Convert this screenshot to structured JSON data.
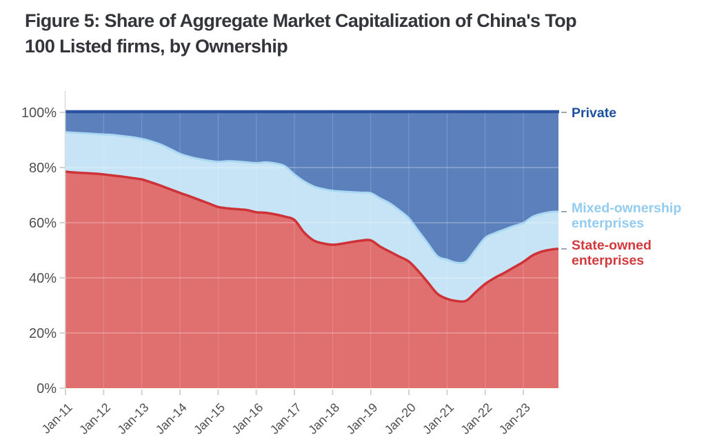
{
  "figure": {
    "title": "Figure 5: Share of Aggregate Market Capitalization of China's Top 100 Listed firms, by Ownership",
    "title_lines": [
      "Figure 5: Share of Aggregate Market Capitalization of China's Top",
      "100 Listed firms, by Ownership"
    ]
  },
  "chart_data": {
    "type": "area",
    "stacked": true,
    "title": "Figure 5: Share of Aggregate Market Capitalization of China's Top 100 Listed firms, by Ownership",
    "xlabel": "",
    "ylabel": "",
    "ylim": [
      0,
      100
    ],
    "xlim": [
      2011,
      2023.92
    ],
    "grid": true,
    "legend_position": "right",
    "y_tick_values": [
      0,
      20,
      40,
      60,
      80,
      100
    ],
    "y_tick_labels": [
      "0%",
      "20%",
      "40%",
      "60%",
      "80%",
      "100%"
    ],
    "x_tick_values": [
      2011,
      2012,
      2013,
      2014,
      2015,
      2016,
      2017,
      2018,
      2019,
      2020,
      2021,
      2022,
      2023
    ],
    "x_tick_labels": [
      "Jan-11",
      "Jan-12",
      "Jan-13",
      "Jan-14",
      "Jan-15",
      "Jan-16",
      "Jan-17",
      "Jan-18",
      "Jan-19",
      "Jan-20",
      "Jan-21",
      "Jan-22",
      "Jan-23"
    ],
    "x": [
      2011.0,
      2011.25,
      2011.5,
      2011.75,
      2012.0,
      2012.25,
      2012.5,
      2012.75,
      2013.0,
      2013.25,
      2013.5,
      2013.75,
      2014.0,
      2014.25,
      2014.5,
      2014.75,
      2015.0,
      2015.25,
      2015.5,
      2015.75,
      2016.0,
      2016.25,
      2016.5,
      2016.75,
      2017.0,
      2017.25,
      2017.5,
      2017.75,
      2018.0,
      2018.25,
      2018.5,
      2018.75,
      2019.0,
      2019.25,
      2019.5,
      2019.75,
      2020.0,
      2020.25,
      2020.5,
      2020.75,
      2021.0,
      2021.25,
      2021.5,
      2021.75,
      2022.0,
      2022.25,
      2022.5,
      2022.75,
      2023.0,
      2023.25,
      2023.5,
      2023.75,
      2023.92
    ],
    "series": [
      {
        "name": "State-owned enterprises",
        "legend_lines": [
          "State-owned",
          "enterprises"
        ],
        "fill": "#e06f6f",
        "line": "#ce3236",
        "label_color": "#d23a3e",
        "values": [
          78.5,
          78.2,
          78.0,
          77.8,
          77.5,
          77.1,
          76.7,
          76.2,
          75.7,
          74.6,
          73.4,
          72.1,
          70.8,
          69.6,
          68.3,
          67.0,
          65.7,
          65.2,
          64.9,
          64.6,
          63.8,
          63.6,
          63.0,
          62.2,
          61.0,
          56.5,
          53.6,
          52.5,
          52.0,
          52.4,
          53.0,
          53.5,
          53.6,
          51.3,
          49.5,
          47.7,
          45.9,
          42.4,
          38.3,
          34.2,
          32.4,
          31.6,
          31.7,
          34.8,
          37.8,
          40.0,
          41.8,
          43.8,
          45.8,
          48.2,
          49.6,
          50.3,
          50.5
        ]
      },
      {
        "name": "Mixed-ownership enterprises",
        "legend_lines": [
          "Mixed-ownership",
          "enterprises"
        ],
        "fill": "#c6e4f6",
        "line": "#a9d9f2",
        "label_color": "#93ccf0",
        "values": [
          14.3,
          14.4,
          14.4,
          14.4,
          14.5,
          14.7,
          14.7,
          14.8,
          14.7,
          14.9,
          14.9,
          14.6,
          14.2,
          14.3,
          14.8,
          15.5,
          16.4,
          17.1,
          17.3,
          17.3,
          17.8,
          18.3,
          18.5,
          18.3,
          16.5,
          18.5,
          19.6,
          19.7,
          19.6,
          18.9,
          18.1,
          17.4,
          17.1,
          17.5,
          17.5,
          16.8,
          15.7,
          14.6,
          14.1,
          13.6,
          14.2,
          13.9,
          14.2,
          15.4,
          16.7,
          16.2,
          15.7,
          15.0,
          14.1,
          14.0,
          13.7,
          13.6,
          13.5
        ]
      },
      {
        "name": "Private",
        "legend_lines": [
          "Private"
        ],
        "fill": "#5c80bc",
        "line": "#2a52a0",
        "label_color": "#1d509f",
        "values": [
          7.2,
          7.4,
          7.6,
          7.8,
          8.0,
          8.2,
          8.6,
          9.0,
          9.6,
          10.5,
          11.7,
          13.3,
          15.0,
          16.1,
          16.9,
          17.5,
          17.9,
          17.7,
          17.8,
          18.1,
          18.4,
          18.1,
          18.5,
          19.5,
          22.5,
          25.0,
          26.8,
          27.8,
          28.4,
          28.7,
          28.9,
          29.1,
          29.3,
          31.2,
          33.0,
          35.5,
          38.4,
          43.0,
          47.6,
          52.2,
          53.4,
          54.5,
          54.1,
          49.8,
          45.5,
          43.8,
          42.5,
          41.2,
          40.1,
          37.8,
          36.7,
          36.1,
          36.0
        ]
      }
    ],
    "style": {
      "axis_color": "#dadada",
      "tick_color": "#d2d2d2",
      "tick_label_color": "#4f4f4f",
      "legend_dash_color": "#9aa7b5",
      "grid_h_color": "rgba(255,255,255,0.38)",
      "grid_v_color": "rgba(255,255,255,0.20)"
    }
  }
}
